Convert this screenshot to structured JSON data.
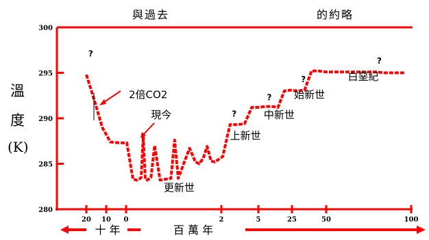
{
  "titles": {
    "left": "與過去",
    "right": "的約略"
  },
  "ylabel": {
    "line1": "溫",
    "line2": "度",
    "line3": "(K)"
  },
  "chart_data": {
    "type": "line",
    "title": "與過去 的約略",
    "ylabel": "溫 度 (K)",
    "ylim": [
      280,
      300
    ],
    "yticks": [
      "300",
      "295",
      "290",
      "285",
      "280"
    ],
    "xticks": [
      "20",
      "10",
      "0",
      "2",
      "5",
      "25",
      "50",
      "100"
    ],
    "xaxis_caption": {
      "part1": "十 年",
      "part2": "百 萬 年"
    },
    "series_color": "#ff0000",
    "series": [
      {
        "name": "temperature",
        "x": [
          0,
          0.4,
          0.8,
          1.2,
          1.6,
          2.0,
          2.3,
          2.5,
          2.6,
          2.7,
          2.8,
          2.9,
          3.0,
          3.1,
          3.2,
          3.35,
          3.5,
          3.65,
          3.75,
          3.85,
          4.0,
          4.15,
          4.3,
          4.4,
          4.5,
          4.6,
          4.7,
          4.8,
          5.0,
          5.2,
          5.4,
          5.6,
          5.8,
          6.0,
          6.2,
          6.4,
          6.6,
          6.8,
          7.0,
          7.2,
          7.4,
          7.6,
          7.8,
          8.0,
          8.2,
          8.4,
          8.6,
          8.8,
          9.0,
          9.2,
          9.4,
          9.6,
          9.8,
          10.0
        ],
        "y": [
          294.8,
          292.0,
          289.0,
          287.4,
          287.3,
          287.3,
          283.3,
          283.2,
          283.3,
          283.5,
          288.0,
          283.3,
          283.2,
          283.5,
          287.0,
          283.2,
          283.3,
          283.4,
          287.6,
          283.4,
          285.0,
          286.7,
          285.2,
          285.0,
          285.6,
          286.9,
          285.3,
          285.2,
          285.8,
          289.3,
          289.3,
          289.4,
          291.2,
          291.2,
          291.3,
          291.3,
          291.2,
          293.0,
          293.1,
          293.0,
          293.1,
          295.2,
          295.2,
          295.1,
          295.1,
          295.1,
          295.1,
          295.1,
          295.1,
          295.1,
          295.0,
          295.0,
          295.0,
          295.0
        ]
      }
    ],
    "annotations": [
      {
        "text": "?",
        "x": 0.1,
        "y": 296.8
      },
      {
        "text": "2倍CO2",
        "x": 2.1,
        "y": 292.2
      },
      {
        "text": "現今",
        "x": 3.1,
        "y": 290.0
      },
      {
        "text": "更新世",
        "x": 3.45,
        "y": 282.0
      },
      {
        "text": "?",
        "x": 5.25,
        "y": 290.2
      },
      {
        "text": "上新世",
        "x": 5.2,
        "y": 287.7
      },
      {
        "text": "?",
        "x": 6.25,
        "y": 292.0
      },
      {
        "text": "中新世",
        "x": 6.15,
        "y": 290.0
      },
      {
        "text": "?",
        "x": 7.3,
        "y": 294.0
      },
      {
        "text": "始新世",
        "x": 7.1,
        "y": 292.2
      },
      {
        "text": "?",
        "x": 9.2,
        "y": 296.0
      },
      {
        "text": "白堊紀",
        "x": 8.5,
        "y": 294.2
      }
    ]
  }
}
